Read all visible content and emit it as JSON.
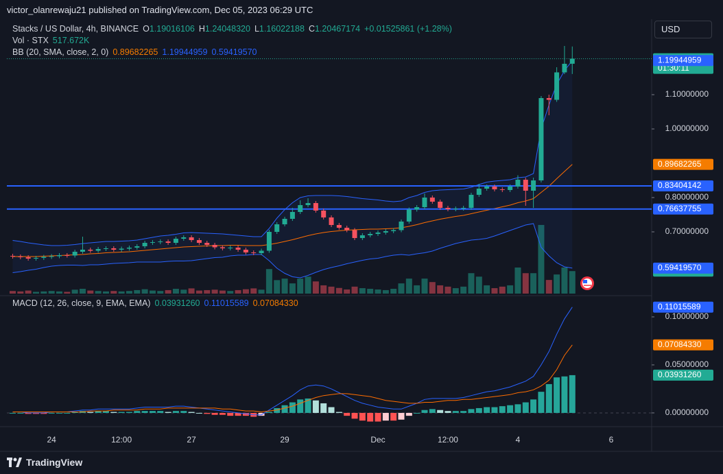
{
  "header": {
    "published": "victor_olanrewaju21 published on TradingView.com, Dec 05, 2023 06:29 UTC",
    "currency": "USD",
    "brand": "TradingView"
  },
  "legend": {
    "symbol": "Stacks / US Dollar, 4h, BINANCE",
    "o_key": "O",
    "o": "1.19016106",
    "h_key": "H",
    "h": "1.24048320",
    "l_key": "L",
    "l": "1.16022188",
    "c_key": "C",
    "c": "1.20467174",
    "change": "+0.01525861 (+1.28%)",
    "vol_title": "Vol · STX",
    "vol": "517.672K",
    "bb_title": "BB (20, SMA, close, 2, 0)",
    "bb_basis": "0.89682265",
    "bb_upper": "1.19944959",
    "bb_lower": "0.59419570",
    "macd_title": "MACD (12, 26, close, 9, EMA, EMA)",
    "macd_hist": "0.03931260",
    "macd_line": "0.11015589",
    "macd_signal": "0.07084330"
  },
  "chart_data": [
    {
      "type": "candlestick",
      "categories": [
        null,
        null,
        null,
        null,
        null,
        "24",
        null,
        null,
        null,
        null,
        null,
        null,
        null,
        null,
        "12:00",
        null,
        null,
        null,
        null,
        null,
        null,
        null,
        null,
        "27",
        null,
        null,
        null,
        null,
        null,
        null,
        null,
        null,
        null,
        null,
        null,
        "29",
        null,
        null,
        null,
        null,
        null,
        null,
        null,
        null,
        null,
        null,
        null,
        "Dec",
        null,
        null,
        null,
        null,
        null,
        null,
        null,
        null,
        "12:00",
        null,
        null,
        null,
        null,
        null,
        null,
        null,
        null,
        "4",
        null,
        null,
        null,
        null,
        null,
        null,
        null,
        null,
        null,
        null,
        null,
        "6"
      ],
      "open": [
        0.63,
        0.628,
        0.626,
        0.622,
        0.624,
        0.627,
        0.629,
        0.632,
        0.631,
        0.642,
        0.648,
        0.645,
        0.65,
        0.652,
        0.648,
        0.651,
        0.654,
        0.658,
        0.668,
        0.67,
        0.672,
        0.668,
        0.68,
        0.684,
        0.676,
        0.668,
        0.662,
        0.655,
        0.652,
        0.654,
        0.648,
        0.64,
        0.638,
        0.645,
        0.7,
        0.722,
        0.738,
        0.758,
        0.778,
        0.784,
        0.762,
        0.742,
        0.72,
        0.712,
        0.705,
        0.682,
        0.69,
        0.694,
        0.698,
        0.702,
        0.705,
        0.73,
        0.765,
        0.772,
        0.8,
        0.788,
        0.77,
        0.766,
        0.768,
        0.77,
        0.808,
        0.826,
        0.832,
        0.824,
        0.822,
        0.832,
        0.852,
        0.82,
        0.85,
        1.09,
        1.085,
        1.165,
        1.19016106,
        null,
        null,
        null,
        null,
        null
      ],
      "high": [
        0.636,
        0.634,
        0.632,
        0.63,
        0.633,
        0.635,
        0.638,
        0.638,
        0.648,
        0.686,
        0.654,
        0.656,
        0.658,
        0.658,
        0.657,
        0.66,
        0.664,
        0.674,
        0.676,
        0.678,
        0.678,
        0.686,
        0.69,
        0.69,
        0.682,
        0.674,
        0.668,
        0.661,
        0.66,
        0.66,
        0.654,
        0.646,
        0.651,
        0.706,
        0.728,
        0.744,
        0.77,
        0.792,
        0.798,
        0.79,
        0.768,
        0.748,
        0.726,
        0.718,
        0.711,
        0.696,
        0.7,
        0.704,
        0.708,
        0.711,
        0.736,
        0.771,
        0.778,
        0.812,
        0.806,
        0.794,
        0.776,
        0.774,
        0.776,
        0.814,
        0.84,
        0.838,
        0.838,
        0.83,
        0.838,
        0.865,
        0.858,
        0.858,
        1.096,
        1.1,
        1.18,
        1.242,
        1.2404832,
        null,
        null,
        null,
        null,
        null
      ],
      "low": [
        0.622,
        0.62,
        0.616,
        0.616,
        0.618,
        0.621,
        0.623,
        0.625,
        0.625,
        0.636,
        0.639,
        0.639,
        0.644,
        0.642,
        0.642,
        0.645,
        0.648,
        0.652,
        0.662,
        0.664,
        0.662,
        0.662,
        0.674,
        0.67,
        0.662,
        0.656,
        0.649,
        0.646,
        0.646,
        0.642,
        0.634,
        0.632,
        0.632,
        0.639,
        0.694,
        0.716,
        0.732,
        0.752,
        0.772,
        0.756,
        0.736,
        0.714,
        0.706,
        0.699,
        0.676,
        0.676,
        0.684,
        0.688,
        0.692,
        0.696,
        0.699,
        0.724,
        0.759,
        0.766,
        0.782,
        0.764,
        0.76,
        0.76,
        0.762,
        0.764,
        0.802,
        0.82,
        0.818,
        0.816,
        0.816,
        0.826,
        0.776,
        0.77,
        0.844,
        1.04,
        1.079,
        1.16,
        1.16022188,
        null,
        null,
        null,
        null,
        null
      ],
      "close": [
        0.628,
        0.626,
        0.622,
        0.624,
        0.627,
        0.629,
        0.632,
        0.631,
        0.642,
        0.648,
        0.645,
        0.65,
        0.652,
        0.648,
        0.651,
        0.654,
        0.658,
        0.668,
        0.67,
        0.672,
        0.668,
        0.68,
        0.684,
        0.676,
        0.668,
        0.662,
        0.655,
        0.652,
        0.654,
        0.648,
        0.64,
        0.638,
        0.645,
        0.7,
        0.722,
        0.738,
        0.758,
        0.778,
        0.784,
        0.762,
        0.742,
        0.72,
        0.712,
        0.705,
        0.682,
        0.69,
        0.694,
        0.698,
        0.702,
        0.705,
        0.73,
        0.765,
        0.772,
        0.8,
        0.788,
        0.77,
        0.766,
        0.768,
        0.77,
        0.808,
        0.826,
        0.832,
        0.824,
        0.822,
        0.832,
        0.852,
        0.82,
        0.85,
        1.09,
        1.085,
        1.165,
        1.19,
        1.20467174,
        null,
        null,
        null,
        null,
        null
      ],
      "up_color": "#22ab94",
      "down_color": "#f7525f",
      "ylim": [
        0.516,
        1.316
      ],
      "yticks": [
        {
          "value": 0.7,
          "label": "0.70000000"
        },
        {
          "value": 0.8,
          "label": "0.80000000"
        },
        {
          "value": 1.0,
          "label": "1.00000000"
        },
        {
          "value": 1.1,
          "label": "1.10000000"
        }
      ],
      "bands": {
        "fill": "rgba(41,98,255,0.07)",
        "series": [
          {
            "color": "#2962ff",
            "values": [
              0.675,
              0.672,
              0.668,
              0.665,
              0.662,
              0.66,
              0.66,
              0.661,
              0.663,
              0.666,
              0.668,
              0.67,
              0.672,
              0.672,
              0.673,
              0.674,
              0.676,
              0.68,
              0.684,
              0.688,
              0.69,
              0.693,
              0.697,
              0.698,
              0.697,
              0.696,
              0.695,
              0.694,
              0.692,
              0.69,
              0.688,
              0.686,
              0.686,
              0.71,
              0.74,
              0.765,
              0.785,
              0.8,
              0.805,
              0.806,
              0.806,
              0.806,
              0.805,
              0.803,
              0.8,
              0.797,
              0.795,
              0.793,
              0.79,
              0.788,
              0.79,
              0.8,
              0.806,
              0.815,
              0.82,
              0.822,
              0.823,
              0.824,
              0.825,
              0.83,
              0.838,
              0.845,
              0.848,
              0.85,
              0.852,
              0.858,
              0.86,
              0.87,
              1.0,
              1.07,
              1.13,
              1.17,
              1.19944959,
              null,
              null,
              null,
              null,
              null
            ]
          },
          {
            "color": "#ff6d00",
            "values": [
              0.628,
              0.628,
              0.628,
              0.628,
              0.629,
              0.63,
              0.631,
              0.632,
              0.633,
              0.634,
              0.636,
              0.637,
              0.639,
              0.64,
              0.641,
              0.642,
              0.644,
              0.646,
              0.648,
              0.65,
              0.652,
              0.654,
              0.656,
              0.657,
              0.658,
              0.659,
              0.66,
              0.66,
              0.661,
              0.661,
              0.66,
              0.66,
              0.66,
              0.663,
              0.667,
              0.672,
              0.677,
              0.683,
              0.689,
              0.694,
              0.698,
              0.701,
              0.703,
              0.705,
              0.706,
              0.707,
              0.708,
              0.708,
              0.709,
              0.71,
              0.712,
              0.716,
              0.721,
              0.727,
              0.732,
              0.737,
              0.741,
              0.745,
              0.748,
              0.753,
              0.758,
              0.763,
              0.768,
              0.773,
              0.778,
              0.785,
              0.79,
              0.797,
              0.815,
              0.833,
              0.855,
              0.876,
              0.89682265,
              null,
              null,
              null,
              null,
              null
            ]
          },
          {
            "color": "#2962ff",
            "values": [
              0.581,
              0.584,
              0.588,
              0.591,
              0.596,
              0.6,
              0.602,
              0.603,
              0.603,
              0.602,
              0.604,
              0.604,
              0.606,
              0.608,
              0.609,
              0.61,
              0.612,
              0.612,
              0.612,
              0.612,
              0.614,
              0.615,
              0.615,
              0.616,
              0.619,
              0.622,
              0.625,
              0.626,
              0.63,
              0.632,
              0.632,
              0.634,
              0.634,
              0.616,
              0.594,
              0.579,
              0.569,
              0.566,
              0.573,
              0.582,
              0.59,
              0.596,
              0.601,
              0.607,
              0.612,
              0.617,
              0.621,
              0.623,
              0.628,
              0.632,
              0.634,
              0.632,
              0.636,
              0.639,
              0.644,
              0.652,
              0.659,
              0.666,
              0.671,
              0.676,
              0.678,
              0.681,
              0.688,
              0.696,
              0.704,
              0.712,
              0.72,
              0.724,
              0.655,
              0.63,
              0.61,
              0.598,
              0.5941957,
              null,
              null,
              null,
              null,
              null
            ]
          }
        ]
      },
      "hline_color": "#2962ff",
      "hlines": [
        {
          "value": 0.83404142,
          "label": "0.83404142"
        },
        {
          "value": 0.76637755,
          "label": "0.76637755"
        }
      ],
      "axis_labels": [
        {
          "value": 1.20467174,
          "label": "1.20467174",
          "sub": "01:30:11",
          "color": "#22ab94"
        },
        {
          "value": 1.19944959,
          "label": "1.19944959",
          "color": "#2962ff"
        },
        {
          "value": 0.89682265,
          "label": "0.89682265",
          "color": "#f57c00"
        },
        {
          "value": 0.5941957,
          "label": "0.59419570",
          "color": "#2962ff"
        }
      ]
    },
    {
      "type": "bar",
      "values": [
        60000,
        50000,
        70000,
        40000,
        50000,
        60000,
        50000,
        40000,
        90000,
        110000,
        70000,
        60000,
        50000,
        60000,
        50000,
        60000,
        80000,
        100000,
        70000,
        60000,
        80000,
        110000,
        90000,
        120000,
        70000,
        80000,
        90000,
        70000,
        60000,
        80000,
        100000,
        120000,
        90000,
        565000,
        310000,
        345000,
        235000,
        345000,
        390000,
        280000,
        190000,
        160000,
        130000,
        95000,
        160000,
        125000,
        110000,
        95000,
        80000,
        110000,
        235000,
        345000,
        190000,
        345000,
        265000,
        190000,
        160000,
        125000,
        160000,
        470000,
        390000,
        190000,
        125000,
        160000,
        190000,
        600000,
        470000,
        470000,
        1580000,
        314000,
        440000,
        600000,
        517672,
        null,
        null,
        null,
        null,
        null
      ],
      "up_color": "rgba(34,171,148,0.5)",
      "down_color": "rgba(247,82,95,0.5)",
      "ylim": [
        0,
        3000000
      ],
      "value_label": {
        "value": 517672,
        "label": "517.672K",
        "color": "#22ab94"
      }
    },
    {
      "type": "macd",
      "ylim": [
        -0.0129,
        0.1214
      ],
      "yticks": [
        {
          "value": 0,
          "label": "0.00000000"
        },
        {
          "value": 0.05,
          "label": "0.05000000"
        },
        {
          "value": 0.1,
          "label": "0.10000000"
        }
      ],
      "series": [
        {
          "color": "#2962ff",
          "values": [
            0.001,
            0.001,
            0,
            0,
            0,
            0.001,
            0.001,
            0.001,
            0.002,
            0.003,
            0.003,
            0.004,
            0.004,
            0.004,
            0.004,
            0.004,
            0.005,
            0.006,
            0.006,
            0.006,
            0.006,
            0.007,
            0.007,
            0.006,
            0.005,
            0.004,
            0.003,
            0.002,
            0.001,
            0,
            -0.001,
            -0.002,
            -0.002,
            0.003,
            0.008,
            0.013,
            0.018,
            0.024,
            0.028,
            0.029,
            0.028,
            0.025,
            0.021,
            0.017,
            0.013,
            0.01,
            0.008,
            0.006,
            0.005,
            0.004,
            0.004,
            0.007,
            0.01,
            0.014,
            0.015,
            0.015,
            0.015,
            0.015,
            0.016,
            0.018,
            0.02,
            0.022,
            0.023,
            0.025,
            0.027,
            0.03,
            0.033,
            0.038,
            0.05,
            0.064,
            0.082,
            0.098,
            0.11015589,
            null,
            null,
            null,
            null,
            null
          ]
        },
        {
          "color": "#ff6d00",
          "values": [
            0.001,
            0.001,
            0.001,
            0.001,
            0.001,
            0.001,
            0.001,
            0.001,
            0.001,
            0.001,
            0.002,
            0.002,
            0.002,
            0.003,
            0.003,
            0.003,
            0.003,
            0.004,
            0.004,
            0.004,
            0.005,
            0.005,
            0.005,
            0.005,
            0.005,
            0.005,
            0.005,
            0.004,
            0.004,
            0.003,
            0.002,
            0.002,
            0.001,
            0.002,
            0.003,
            0.005,
            0.007,
            0.01,
            0.013,
            0.016,
            0.018,
            0.019,
            0.02,
            0.02,
            0.019,
            0.018,
            0.017,
            0.015,
            0.013,
            0.012,
            0.011,
            0.01,
            0.01,
            0.011,
            0.011,
            0.012,
            0.013,
            0.013,
            0.014,
            0.014,
            0.015,
            0.016,
            0.017,
            0.018,
            0.019,
            0.021,
            0.022,
            0.024,
            0.028,
            0.034,
            0.045,
            0.06,
            0.0708433,
            null,
            null,
            null,
            null,
            null
          ]
        }
      ],
      "histogram": {
        "colors": [
          "#26a69a",
          "#b2dfdb",
          "#ff5252",
          "#ffcdd2"
        ],
        "values": [
          0,
          0,
          -0.001,
          -0.001,
          -0.001,
          0,
          0,
          0,
          0.001,
          0.002,
          0.001,
          0.002,
          0.002,
          0.001,
          0.001,
          0.001,
          0.002,
          0.002,
          0.002,
          0.002,
          0.001,
          0.002,
          0.002,
          0.001,
          0,
          -0.001,
          -0.002,
          -0.002,
          -0.003,
          -0.003,
          -0.003,
          -0.004,
          -0.003,
          0.001,
          0.005,
          0.008,
          0.011,
          0.014,
          0.015,
          0.013,
          0.01,
          0.006,
          0.001,
          -0.003,
          -0.006,
          -0.008,
          -0.009,
          -0.009,
          -0.008,
          -0.008,
          -0.007,
          -0.003,
          0,
          0.003,
          0.004,
          0.003,
          0.002,
          0.002,
          0.002,
          0.004,
          0.005,
          0.006,
          0.006,
          0.007,
          0.008,
          0.009,
          0.011,
          0.014,
          0.022,
          0.03,
          0.037,
          0.038,
          0.0393126,
          null,
          null,
          null,
          null,
          null
        ]
      },
      "axis_labels": [
        {
          "value": 0.11015589,
          "label": "0.11015589",
          "color": "#2962ff"
        },
        {
          "value": 0.0708433,
          "label": "0.07084330",
          "color": "#f57c00"
        },
        {
          "value": 0.0393126,
          "label": "0.03931260",
          "color": "#22ab94"
        }
      ]
    }
  ]
}
